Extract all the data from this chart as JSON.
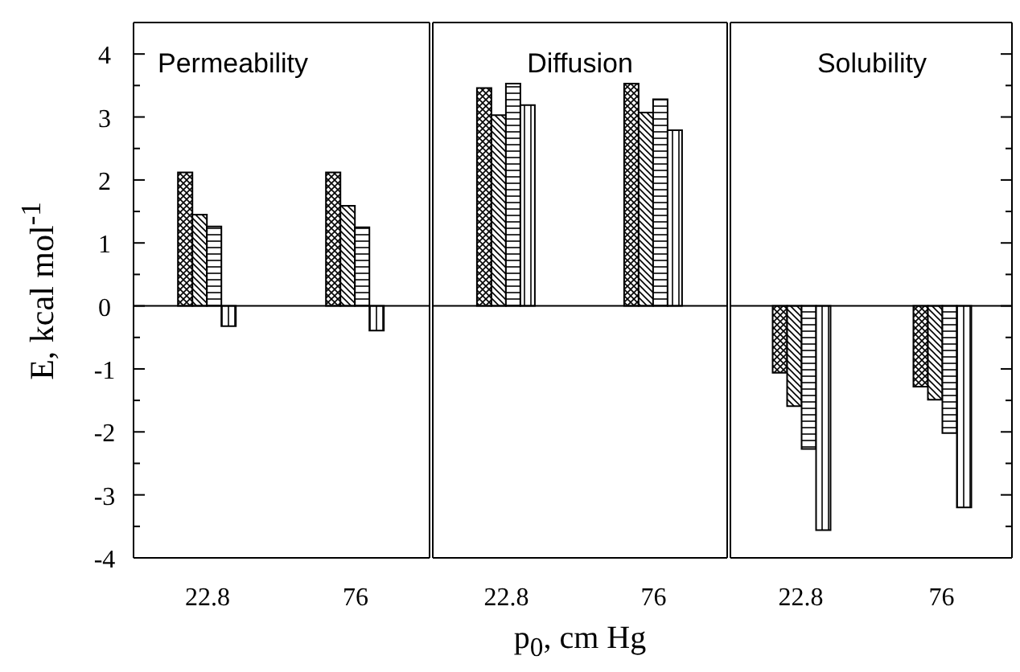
{
  "chart_data": [
    {
      "type": "bar",
      "title": "Permeability",
      "ylabel": "E, kcal mol$^{-1}$",
      "categories": [
        "22.8",
        "76"
      ],
      "ylim": [
        -4,
        4.5
      ],
      "yticks": [
        -4,
        {
          "value": -3.5,
          "label": null
        },
        -3,
        {
          "value": -2.5,
          "label": null
        },
        -2,
        {
          "value": -1.5,
          "label": null
        },
        -1,
        {
          "value": -0.5,
          "label": null
        },
        0,
        {
          "value": 0.5,
          "label": null
        },
        1,
        {
          "value": 1.5,
          "label": null
        },
        2,
        {
          "value": 2.5,
          "label": null
        },
        3,
        {
          "value": 3.5,
          "label": null
        },
        4
      ],
      "ref_lines": [
        {
          "axis": "y",
          "value": 0
        }
      ],
      "series": [
        {
          "color": "#000000",
          "values": [
            2.12,
            2.12
          ]
        },
        {
          "color": "#000000",
          "values": [
            1.45,
            1.59
          ]
        },
        {
          "color": "#000000",
          "values": [
            1.26,
            1.25
          ]
        },
        {
          "color": "#000000",
          "values": [
            -0.32,
            -0.39
          ]
        }
      ]
    },
    {
      "type": "bar",
      "title": "Diffusion",
      "xlabel": "p$_{0}$, cm Hg",
      "categories": [
        "22.8",
        "76"
      ],
      "ylim": [
        -4,
        4.5
      ],
      "tick_labels": "x",
      "ref_lines": [
        {
          "axis": "y",
          "value": 0
        }
      ],
      "series": [
        {
          "color": "#000000",
          "values": [
            3.46,
            3.53
          ]
        },
        {
          "color": "#000000",
          "values": [
            3.03,
            3.07
          ]
        },
        {
          "color": "#000000",
          "values": [
            3.53,
            3.28
          ]
        },
        {
          "color": "#000000",
          "values": [
            3.19,
            2.79
          ]
        }
      ]
    },
    {
      "type": "bar",
      "title": "Solubility",
      "categories": [
        "22.8",
        "76"
      ],
      "ylim": [
        -4,
        4.5
      ],
      "tick_labels": "x",
      "yticks": [
        -4,
        {
          "value": -3.5,
          "label": null
        },
        -3,
        {
          "value": -2.5,
          "label": null
        },
        -2,
        {
          "value": -1.5,
          "label": null
        },
        -1,
        {
          "value": -0.5,
          "label": null
        },
        0,
        {
          "value": 0.5,
          "label": null
        },
        1,
        {
          "value": 1.5,
          "label": null
        },
        2,
        {
          "value": 2.5,
          "label": null
        },
        3,
        {
          "value": 3.5,
          "label": null
        },
        4
      ],
      "ref_lines": [
        {
          "axis": "y",
          "value": 0
        }
      ],
      "series": [
        {
          "color": "#000000",
          "values": [
            -1.06,
            -1.28
          ]
        },
        {
          "color": "#000000",
          "values": [
            -1.59,
            -1.49
          ]
        },
        {
          "color": "#000000",
          "values": [
            -2.27,
            -2.02
          ]
        },
        {
          "color": "#000000",
          "values": [
            -3.56,
            -3.2
          ]
        }
      ]
    }
  ]
}
